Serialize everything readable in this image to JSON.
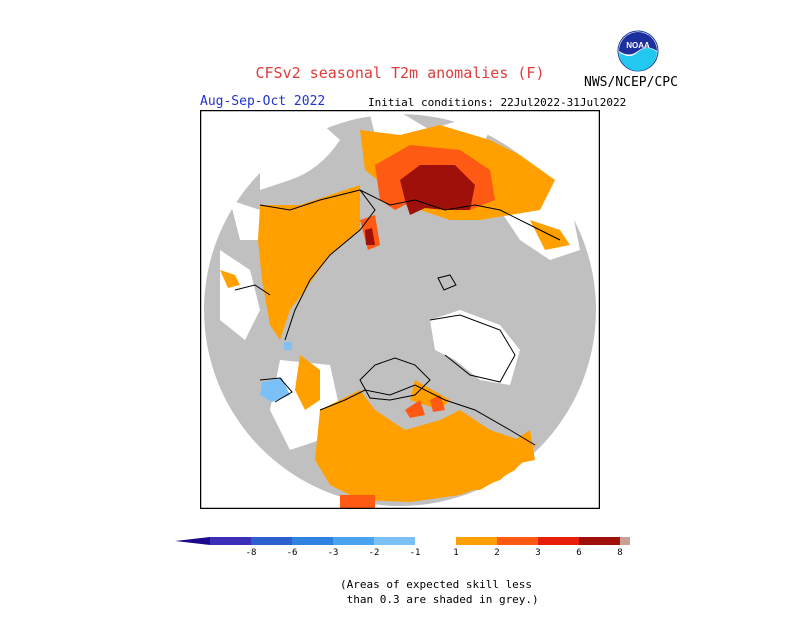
{
  "title": "CFSv2 seasonal T2m anomalies (F)",
  "agency": "NWS/NCEP/CPC",
  "logo_text": "NOAA",
  "season": "Aug-Sep-Oct 2022",
  "initial_conditions": "Initial conditions: 22Jul2022-31Jul2022",
  "note_line1": "(Areas of expected skill less",
  "note_line2": " than 0.3 are shaded in grey.)",
  "legend": {
    "below_neg1": [
      {
        "label": "-8",
        "color": "#3a2fb6"
      },
      {
        "label": "-6",
        "color": "#2e5fcf"
      },
      {
        "label": "-3",
        "color": "#2f82e0"
      },
      {
        "label": "-2",
        "color": "#4aa3f0"
      },
      {
        "label": "-1",
        "color": "#7cc0f8"
      }
    ],
    "neutral_color": "#ffffff",
    "above_pos1": [
      {
        "label": "1",
        "color": "#ffa000"
      },
      {
        "label": "2",
        "color": "#ff5a14"
      },
      {
        "label": "3",
        "color": "#e61e0a"
      },
      {
        "label": "6",
        "color": "#a0100a"
      },
      {
        "label": "8",
        "color": "#c8a096"
      }
    ],
    "low_end_color": "#1c0a8c",
    "high_end_color": "#8c5a50"
  },
  "colors": {
    "grey_low_skill": "#c0c0c0",
    "warm_1_2": "#ffa000",
    "warm_2_3": "#ff5a14",
    "warm_3_6": "#e61e0a",
    "warm_6_8": "#a0100a",
    "cool_neg1_neg2": "#7cc0f8"
  }
}
